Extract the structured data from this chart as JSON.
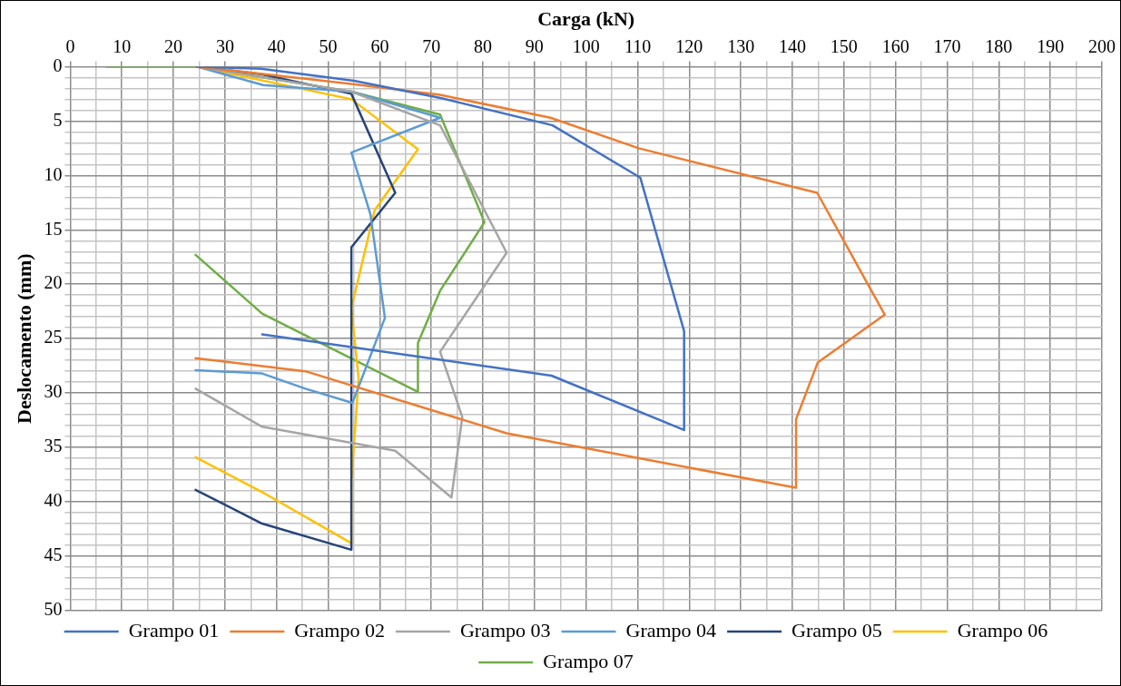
{
  "chart_data": {
    "type": "line",
    "xlabel": "Carga (kN)",
    "ylabel": "Deslocamento (mm)",
    "xlim": [
      0,
      200
    ],
    "xticks": [
      0,
      {
        "value": 5,
        "label": null
      },
      10,
      {
        "value": 15,
        "label": null
      },
      20,
      {
        "value": 25,
        "label": null
      },
      30,
      {
        "value": 35,
        "label": null
      },
      40,
      {
        "value": 45,
        "label": null
      },
      50,
      {
        "value": 55,
        "label": null
      },
      60,
      {
        "value": 65,
        "label": null
      },
      70,
      {
        "value": 75,
        "label": null
      },
      80,
      {
        "value": 85,
        "label": null
      },
      90,
      {
        "value": 95,
        "label": null
      },
      100,
      {
        "value": 105,
        "label": null
      },
      110,
      {
        "value": 115,
        "label": null
      },
      120,
      {
        "value": 125,
        "label": null
      },
      130,
      {
        "value": 135,
        "label": null
      },
      140,
      {
        "value": 145,
        "label": null
      },
      150,
      {
        "value": 155,
        "label": null
      },
      160,
      {
        "value": 165,
        "label": null
      },
      170,
      {
        "value": 175,
        "label": null
      },
      180,
      {
        "value": 185,
        "label": null
      },
      190,
      {
        "value": 195,
        "label": null
      },
      200
    ],
    "ylim": [
      50,
      0
    ],
    "yticks": [
      0,
      {
        "value": 1,
        "label": null
      },
      {
        "value": 2,
        "label": null
      },
      {
        "value": 3,
        "label": null
      },
      {
        "value": 4,
        "label": null
      },
      5,
      {
        "value": 6,
        "label": null
      },
      {
        "value": 7,
        "label": null
      },
      {
        "value": 8,
        "label": null
      },
      {
        "value": 9,
        "label": null
      },
      10,
      {
        "value": 11,
        "label": null
      },
      {
        "value": 12,
        "label": null
      },
      {
        "value": 13,
        "label": null
      },
      {
        "value": 14,
        "label": null
      },
      15,
      {
        "value": 16,
        "label": null
      },
      {
        "value": 17,
        "label": null
      },
      {
        "value": 18,
        "label": null
      },
      {
        "value": 19,
        "label": null
      },
      20,
      {
        "value": 21,
        "label": null
      },
      {
        "value": 22,
        "label": null
      },
      {
        "value": 23,
        "label": null
      },
      {
        "value": 24,
        "label": null
      },
      25,
      {
        "value": 26,
        "label": null
      },
      {
        "value": 27,
        "label": null
      },
      {
        "value": 28,
        "label": null
      },
      {
        "value": 29,
        "label": null
      },
      30,
      {
        "value": 31,
        "label": null
      },
      {
        "value": 32,
        "label": null
      },
      {
        "value": 33,
        "label": null
      },
      {
        "value": 34,
        "label": null
      },
      35,
      {
        "value": 36,
        "label": null
      },
      {
        "value": 37,
        "label": null
      },
      {
        "value": 38,
        "label": null
      },
      {
        "value": 39,
        "label": null
      },
      40,
      {
        "value": 41,
        "label": null
      },
      {
        "value": 42,
        "label": null
      },
      {
        "value": 43,
        "label": null
      },
      {
        "value": 44,
        "label": null
      },
      45,
      {
        "value": 46,
        "label": null
      },
      {
        "value": 47,
        "label": null
      },
      {
        "value": 48,
        "label": null
      },
      {
        "value": 49,
        "label": null
      },
      50
    ],
    "grid": true,
    "legend": "bottom",
    "marker": "none",
    "line_style": "solid",
    "series": [
      {
        "name": "Grampo 01",
        "color": "#4472c4",
        "x": [
          24.5,
          37,
          55,
          72,
          93.5,
          110.5,
          119,
          119,
          93.3,
          37.2
        ],
        "values": [
          0,
          0.2,
          1.3,
          2.9,
          5.4,
          10.2,
          24.3,
          33.4,
          28.4,
          24.6
        ]
      },
      {
        "name": "Grampo 02",
        "color": "#ed7d31",
        "x": [
          24.5,
          54.5,
          71.7,
          93.1,
          110.2,
          144.8,
          157.9,
          144.9,
          140.7,
          140.7,
          84.6,
          45.6,
          24.3
        ],
        "values": [
          0,
          1.6,
          2.6,
          4.7,
          7.5,
          11.6,
          22.8,
          27.2,
          32.4,
          38.7,
          33.7,
          28.0,
          26.8
        ]
      },
      {
        "name": "Grampo 03",
        "color": "#a5a5a5",
        "x": [
          24.5,
          54.5,
          71.7,
          84.6,
          71.7,
          76,
          73.9,
          63,
          37.2,
          24.3
        ],
        "values": [
          0,
          2.3,
          5.4,
          17.1,
          26.2,
          32.2,
          39.6,
          35.3,
          33.1,
          29.6
        ]
      },
      {
        "name": "Grampo 04",
        "color": "#5b9bd5",
        "x": [
          24.5,
          37.4,
          54.5,
          71.7,
          54.5,
          58.2,
          61,
          54.7,
          45.6,
          37.2,
          24.3
        ],
        "values": [
          0,
          1.7,
          2.3,
          4.7,
          7.9,
          13.6,
          23.1,
          30.9,
          29.6,
          28.2,
          27.9
        ]
      },
      {
        "name": "Grampo 05",
        "color": "#264478",
        "x": [
          24.5,
          37,
          54.5,
          63,
          54.5,
          54.5,
          37.2,
          24.3
        ],
        "values": [
          0,
          0.7,
          2.5,
          11.6,
          16.6,
          44.4,
          42.0,
          38.9
        ]
      },
      {
        "name": "Grampo 06",
        "color": "#ffc000",
        "x": [
          24.5,
          54.5,
          67.4,
          59,
          54.5,
          55.9,
          54.5,
          54.5,
          37.2,
          24.3
        ],
        "values": [
          0,
          3.0,
          7.6,
          13.2,
          22.2,
          28.7,
          38.1,
          43.8,
          39.1,
          35.9
        ]
      },
      {
        "name": "Grampo 07",
        "color": "#70ad47",
        "x": [
          7,
          24.5,
          54.5,
          71.7,
          80.3,
          71.7,
          67.4,
          67.4,
          37.2,
          24.3
        ],
        "values": [
          0,
          0,
          2.3,
          4.4,
          14.3,
          20.6,
          25.4,
          29.9,
          22.7,
          17.3
        ]
      }
    ]
  }
}
